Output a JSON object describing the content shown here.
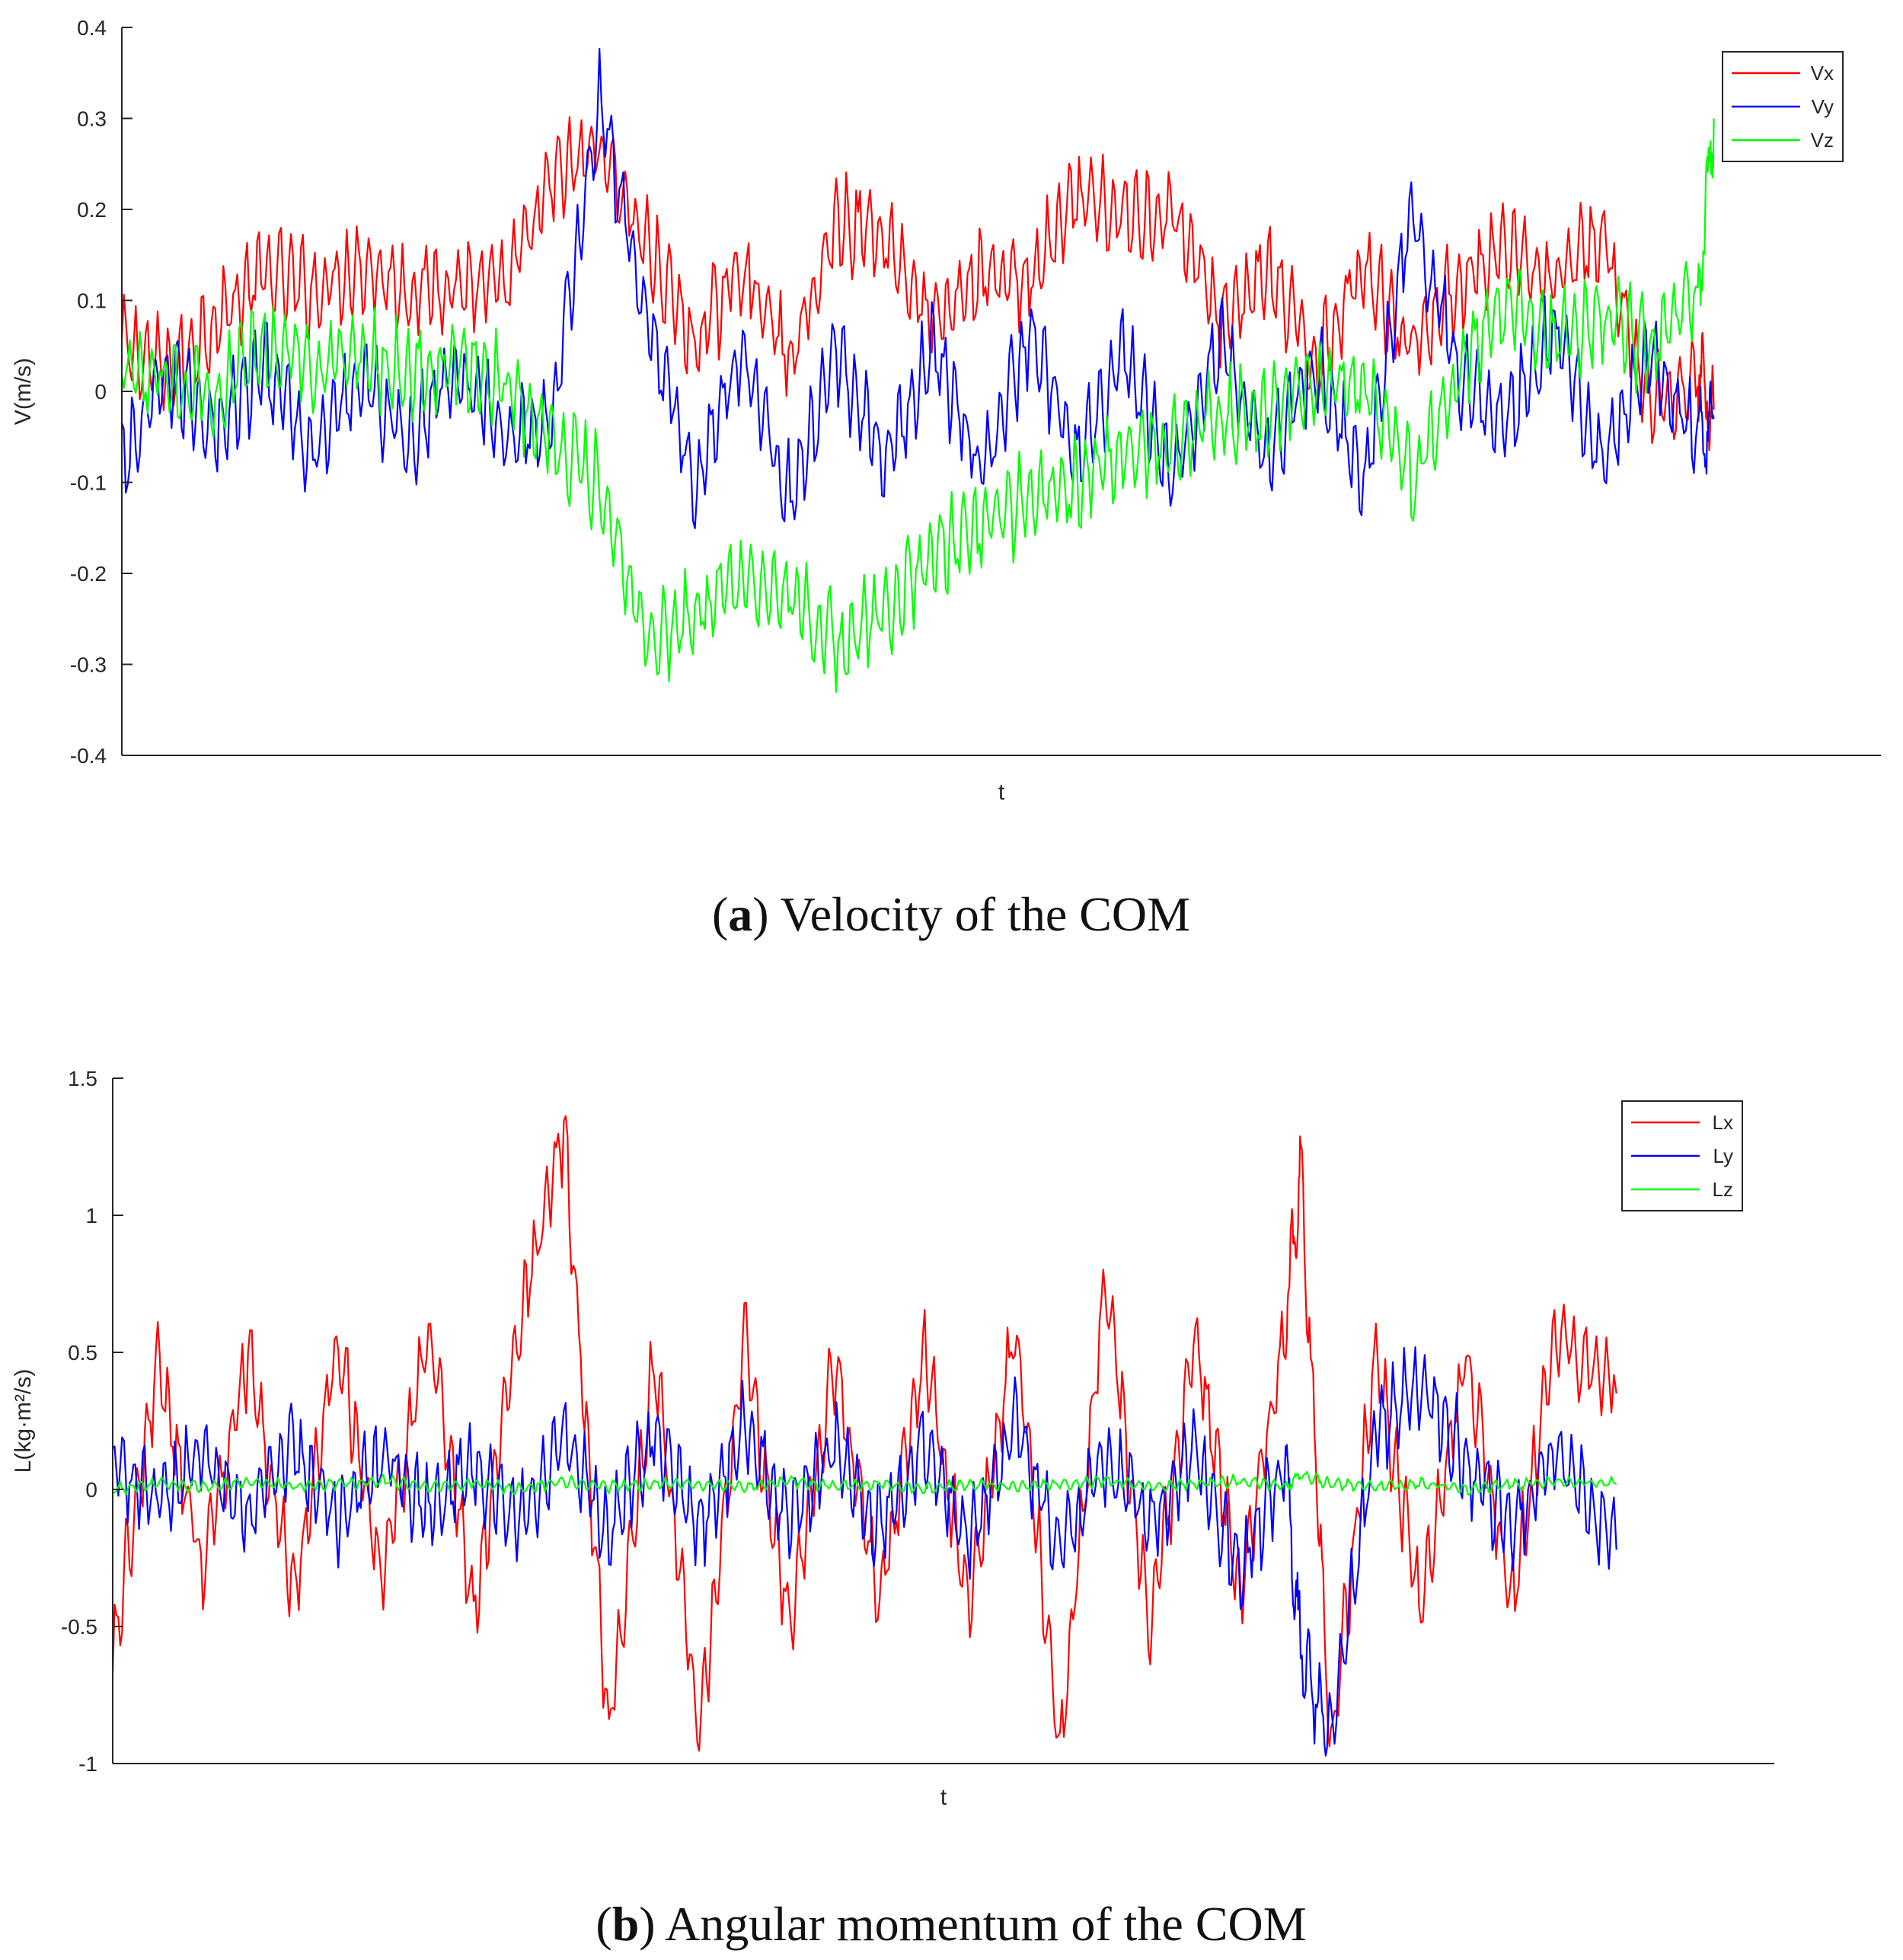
{
  "chart_data": [
    {
      "type": "line",
      "xlabel": "t",
      "ylabel": "V(m/s)",
      "ylim": [
        -0.4,
        0.4
      ],
      "yticks": [
        "0.4",
        "0.3",
        "0.2",
        "0.1",
        "0",
        "-0.1",
        "-0.2",
        "-0.3",
        "-0.4"
      ],
      "grid": false,
      "legend_position": "top-right",
      "caption_letter": "a",
      "caption_text": "Velocity of the COM",
      "x": [
        0,
        0.03,
        0.06,
        0.09,
        0.12,
        0.15,
        0.18,
        0.21,
        0.24,
        0.27,
        0.3,
        0.33,
        0.36,
        0.39,
        0.42,
        0.45,
        0.48,
        0.51,
        0.54,
        0.57,
        0.6,
        0.63,
        0.66,
        0.69,
        0.72,
        0.75,
        0.78,
        0.81,
        0.84,
        0.87,
        0.9,
        0.93,
        0.96,
        0.99,
        1.0
      ],
      "series": [
        {
          "name": "Vx",
          "color": "#ff0000",
          "values": [
            0.05,
            0.02,
            0.08,
            0.13,
            0.11,
            0.14,
            0.11,
            0.12,
            0.11,
            0.23,
            0.27,
            0.16,
            0.05,
            0.14,
            0.03,
            0.19,
            0.17,
            0.07,
            0.13,
            0.12,
            0.21,
            0.19,
            0.2,
            0.08,
            0.13,
            0.03,
            0.14,
            0.05,
            0.12,
            0.15,
            0.12,
            0.17,
            -0.02,
            0.02,
            -0.02
          ]
        },
        {
          "name": "Vy",
          "color": "#0000ff",
          "values": [
            -0.08,
            0.02,
            -0.04,
            0.03,
            -0.07,
            0.02,
            -0.06,
            0.03,
            -0.05,
            -0.03,
            0.32,
            0.08,
            -0.1,
            0.05,
            -0.12,
            0.04,
            -0.08,
            0.05,
            -0.09,
            0.06,
            -0.07,
            0.04,
            -0.1,
            0.06,
            -0.07,
            0.03,
            -0.1,
            0.2,
            0.02,
            -0.03,
            0.07,
            -0.08,
            0.04,
            -0.05,
            -0.03
          ]
        },
        {
          "name": "Vz",
          "color": "#00ff00",
          "values": [
            0.02,
            0.01,
            0.0,
            0.05,
            0.03,
            0.04,
            0.02,
            0.03,
            0.01,
            -0.05,
            -0.1,
            -0.27,
            -0.25,
            -0.2,
            -0.22,
            -0.28,
            -0.24,
            -0.18,
            -0.15,
            -0.12,
            -0.1,
            -0.07,
            -0.05,
            -0.03,
            -0.02,
            0.0,
            0.01,
            -0.1,
            0.02,
            0.1,
            0.06,
            0.08,
            0.05,
            0.1,
            0.3
          ]
        }
      ]
    },
    {
      "type": "line",
      "xlabel": "t",
      "ylabel": "L(kg·m²/s)",
      "ylim": [
        -1,
        1.5
      ],
      "yticks": [
        "1.5",
        "1",
        "0.5",
        "0",
        "-0.5",
        "-1"
      ],
      "grid": false,
      "legend_position": "top-right",
      "caption_letter": "b",
      "caption_text": "Angular momentum of the COM",
      "x": [
        0,
        0.03,
        0.06,
        0.09,
        0.12,
        0.15,
        0.18,
        0.21,
        0.24,
        0.27,
        0.3,
        0.33,
        0.36,
        0.39,
        0.42,
        0.45,
        0.48,
        0.51,
        0.54,
        0.57,
        0.6,
        0.63,
        0.66,
        0.69,
        0.72,
        0.75,
        0.78,
        0.79,
        0.81,
        0.84,
        0.87,
        0.9,
        0.93,
        0.96,
        1.0
      ],
      "series": [
        {
          "name": "Lx",
          "color": "#ff0000",
          "values": [
            -0.6,
            0.45,
            -0.3,
            0.5,
            -0.4,
            0.55,
            -0.35,
            0.6,
            -0.45,
            0.6,
            1.3,
            -0.9,
            0.5,
            -0.9,
            0.55,
            -0.5,
            0.45,
            -0.4,
            0.5,
            -0.45,
            0.6,
            -0.95,
            0.75,
            -0.5,
            0.55,
            -0.4,
            0.6,
            1.18,
            -0.95,
            0.5,
            -0.45,
            0.5,
            -0.4,
            0.55,
            0.35
          ]
        },
        {
          "name": "Ly",
          "color": "#0000ff",
          "values": [
            0.1,
            -0.05,
            0.12,
            -0.08,
            0.15,
            -0.1,
            0.12,
            -0.08,
            0.1,
            -0.12,
            0.2,
            -0.18,
            0.2,
            -0.15,
            0.22,
            -0.1,
            0.15,
            -0.15,
            0.18,
            -0.2,
            0.25,
            -0.22,
            0.1,
            -0.12,
            0.15,
            -0.3,
            0.1,
            -0.6,
            -0.9,
            0.2,
            0.4,
            0.1,
            -0.15,
            0.15,
            -0.22
          ]
        },
        {
          "name": "Lz",
          "color": "#00ff00",
          "values": [
            0.0,
            0.02,
            0.01,
            0.03,
            0.01,
            0.02,
            0.03,
            0.01,
            0.02,
            0.0,
            0.03,
            0.01,
            0.02,
            0.02,
            0.01,
            0.03,
            0.01,
            0.02,
            0.0,
            0.02,
            0.01,
            0.02,
            0.03,
            0.01,
            0.02,
            0.03,
            0.01,
            0.05,
            0.02,
            0.01,
            0.02,
            0.0,
            0.02,
            0.03,
            0.02
          ]
        }
      ]
    }
  ]
}
